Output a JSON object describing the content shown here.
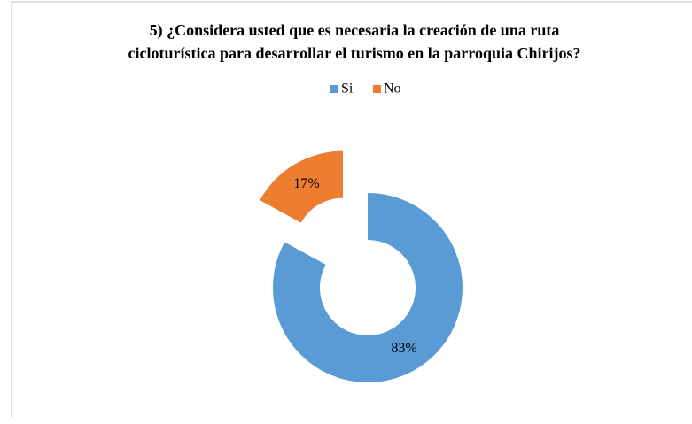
{
  "chart_data": {
    "type": "donut",
    "title": [
      "5) ¿Considera usted que es necesaria la  creación de una ruta",
      "cicloturística para desarrollar el  turismo  en la parroquia Chirijos?"
    ],
    "categories": [
      "Si",
      "No"
    ],
    "values": [
      83,
      17
    ],
    "value_labels": [
      "83%",
      "17%"
    ],
    "colors": [
      "#5b9bd5",
      "#ed7d31"
    ],
    "legend": "top",
    "exploded": [
      false,
      true
    ]
  }
}
